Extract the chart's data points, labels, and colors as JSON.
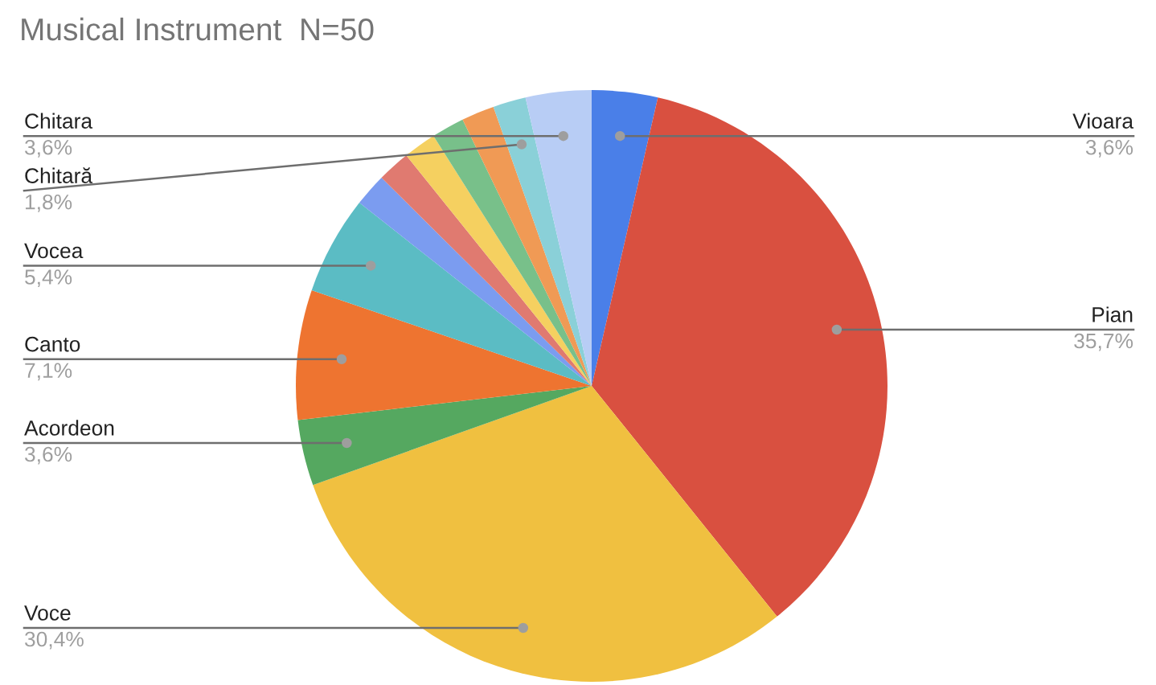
{
  "chart_data": {
    "type": "pie",
    "title": "Musical Instrument  N=50",
    "categories": [
      "Vioara",
      "Pian",
      "Voce",
      "Acordeon",
      "Canto",
      "Vocea",
      null,
      null,
      null,
      null,
      null,
      "Chitară",
      "Chitara"
    ],
    "values": [
      3.6,
      35.7,
      30.4,
      3.6,
      7.1,
      5.4,
      1.8,
      1.8,
      1.8,
      1.8,
      1.8,
      1.8,
      3.6
    ],
    "value_labels": [
      "3,6%",
      "35,7%",
      "30,4%",
      "3,6%",
      "7,1%",
      "5,4%",
      null,
      null,
      null,
      null,
      null,
      "1,8%",
      "3,6%"
    ],
    "colors": [
      "#4a7fe8",
      "#d95040",
      "#f0c040",
      "#55a860",
      "#ee7430",
      "#5bbcc4",
      "#7b9cf0",
      "#e07a70",
      "#f5d060",
      "#78c08a",
      "#f09a55",
      "#8ad0d8",
      "#b8cdf5"
    ],
    "legend": false
  }
}
